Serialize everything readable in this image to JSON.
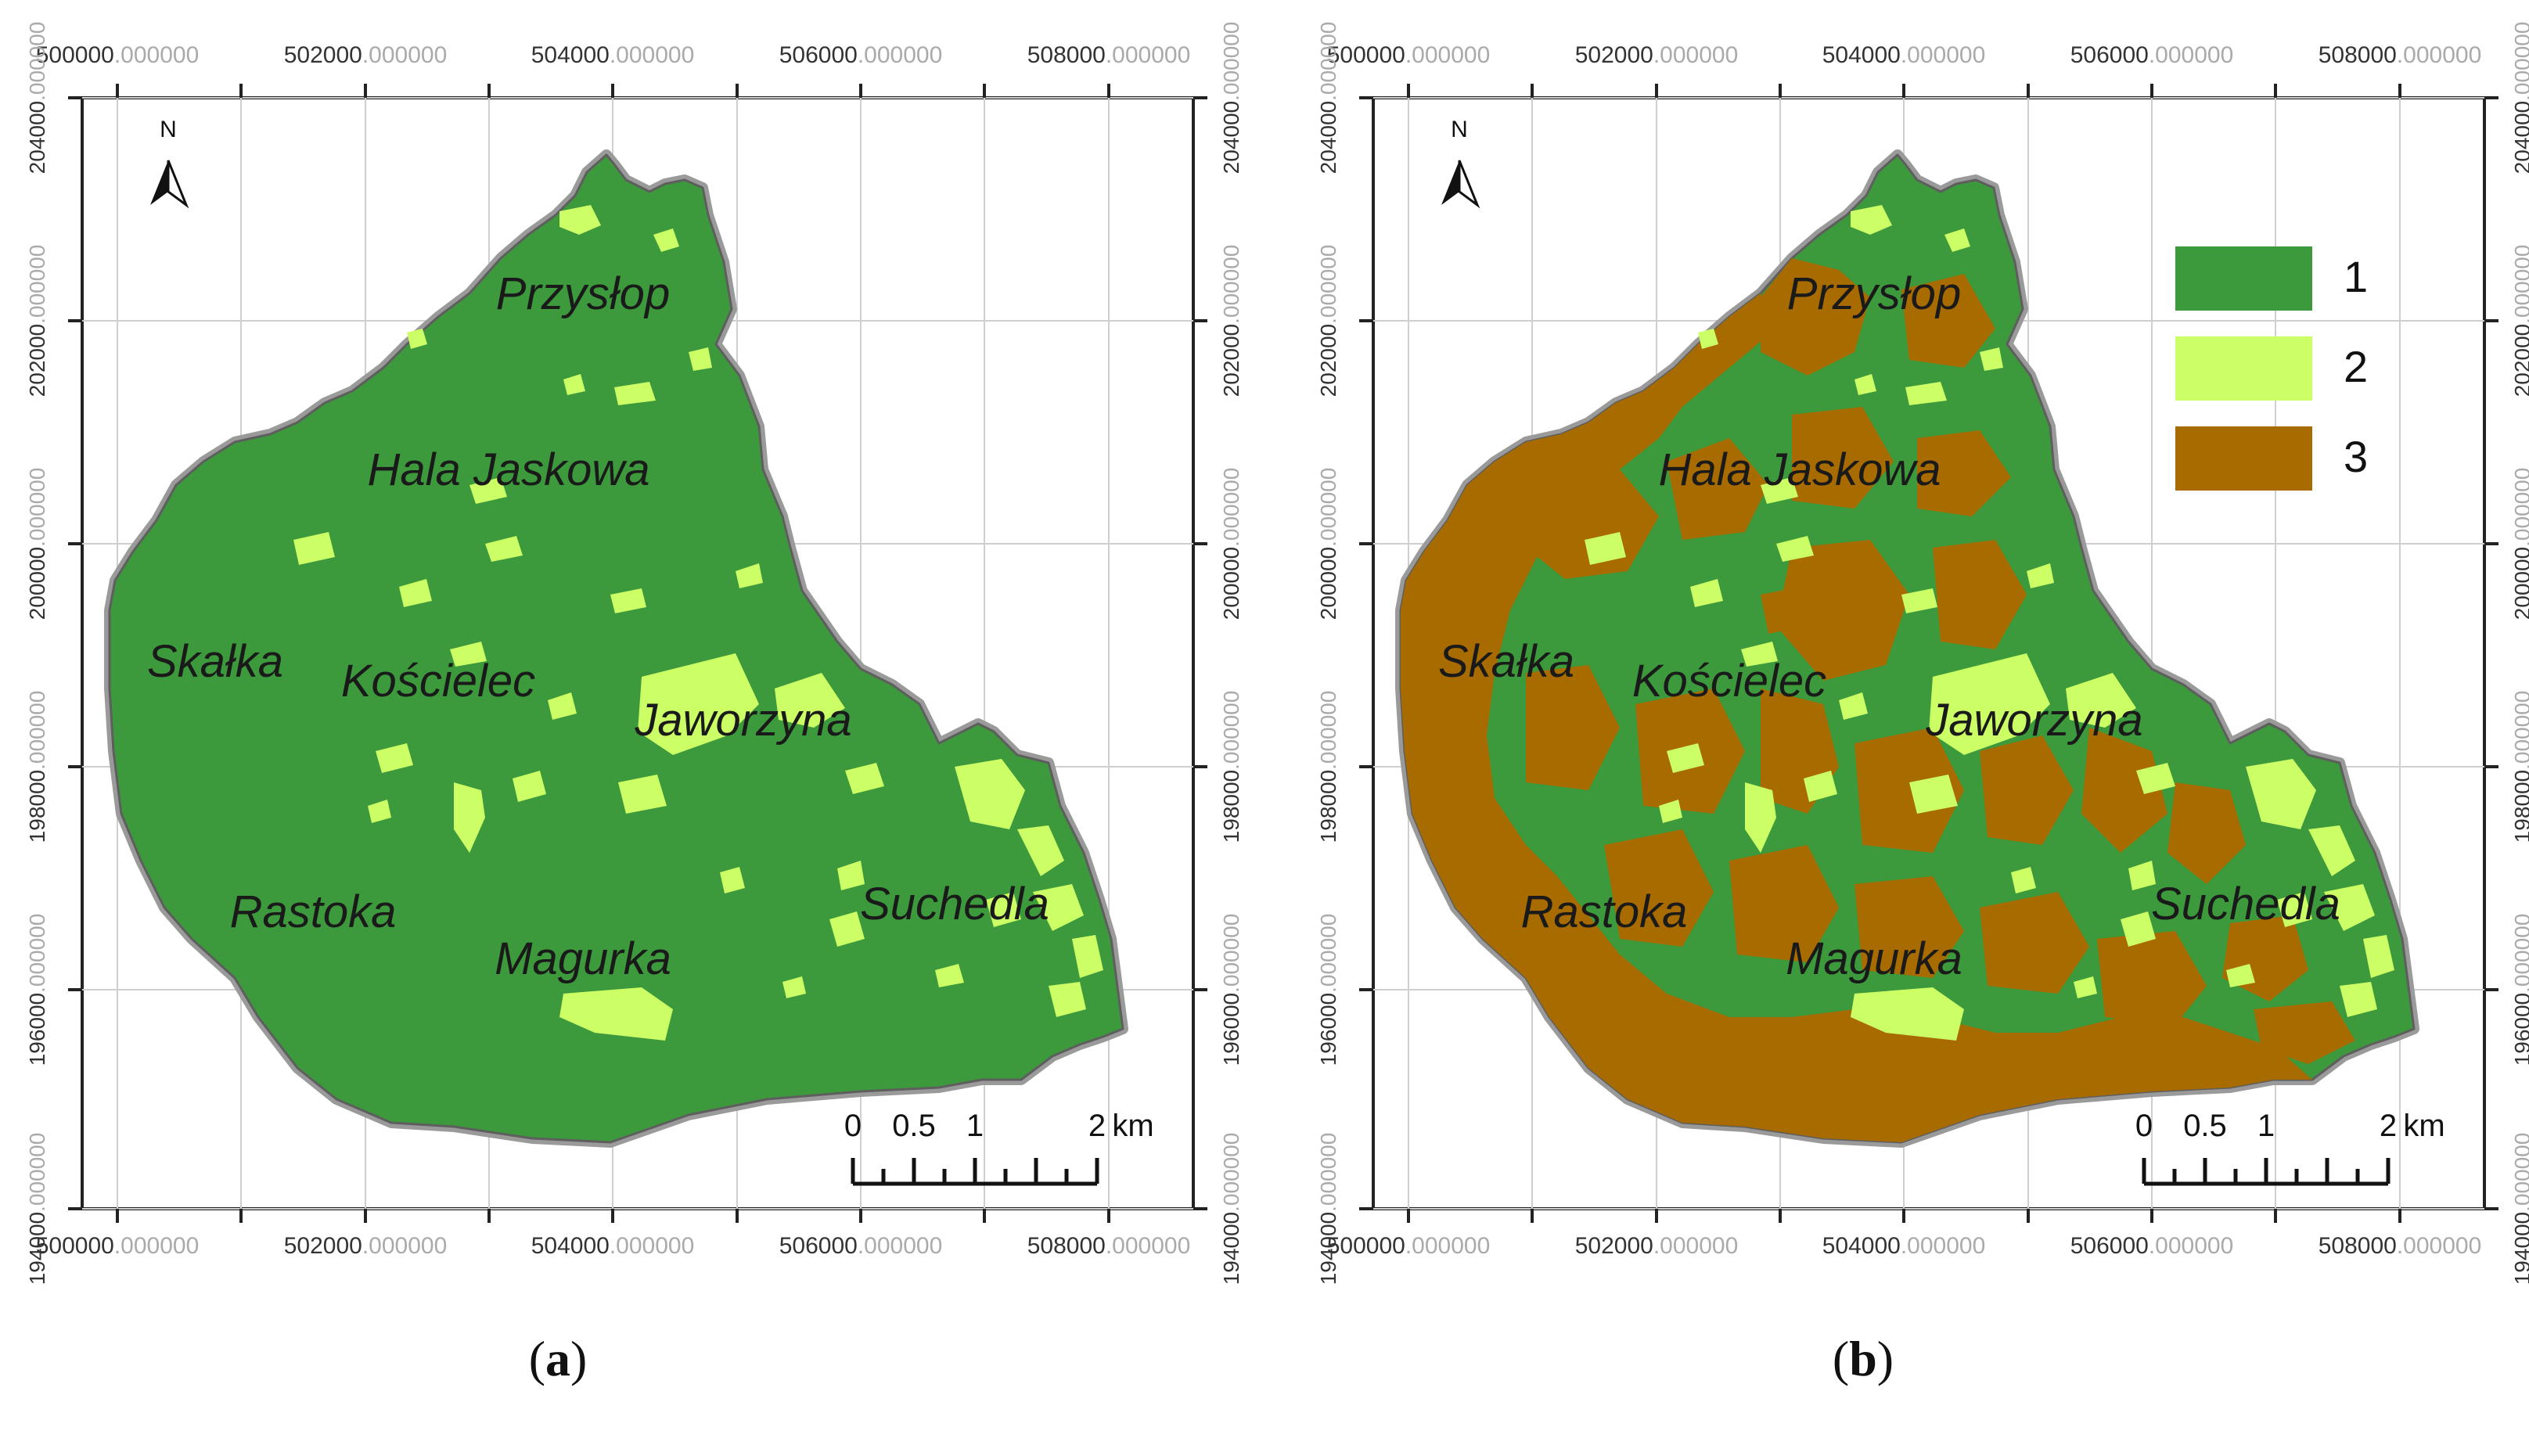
{
  "colors": {
    "forest": "#3c9a3c",
    "meadow": "#ccff66",
    "brown": "#a86b00",
    "boundary": "#9a9a9a",
    "grid": "#cfcfcf",
    "frame": "#222222",
    "coord_suffix": "#aaaaaa"
  },
  "coords": {
    "x_labels": [
      {
        "main": "500000",
        "suffix": ".000000"
      },
      {
        "main": "502000",
        "suffix": ".000000"
      },
      {
        "main": "504000",
        "suffix": ".000000"
      },
      {
        "main": "506000",
        "suffix": ".000000"
      },
      {
        "main": "508000",
        "suffix": ".000000"
      }
    ],
    "y_labels": [
      {
        "main": "204000",
        "suffix": ".000000"
      },
      {
        "main": "202000",
        "suffix": ".000000"
      },
      {
        "main": "200000",
        "suffix": ".000000"
      },
      {
        "main": "198000",
        "suffix": ".000000"
      },
      {
        "main": "196000",
        "suffix": ".000000"
      },
      {
        "main": "194000",
        "suffix": ".000000"
      }
    ]
  },
  "places": [
    "Przysłop",
    "Hala Jaskowa",
    "Skałka",
    "Kościelec",
    "Jaworzyna",
    "Rastoka",
    "Magurka",
    "Suchedla"
  ],
  "north_label": "N",
  "scale_bar": {
    "ticks": [
      "0",
      "0.5",
      "1",
      "2"
    ],
    "unit": "km"
  },
  "legend": [
    {
      "label": "1",
      "color": "#3c9a3c"
    },
    {
      "label": "2",
      "color": "#ccff66"
    },
    {
      "label": "3",
      "color": "#a86b00"
    }
  ],
  "panels": [
    {
      "caption_open": "(",
      "caption_letter": "a",
      "caption_close": ")"
    },
    {
      "caption_open": "(",
      "caption_letter": "b",
      "caption_close": ")"
    }
  ]
}
